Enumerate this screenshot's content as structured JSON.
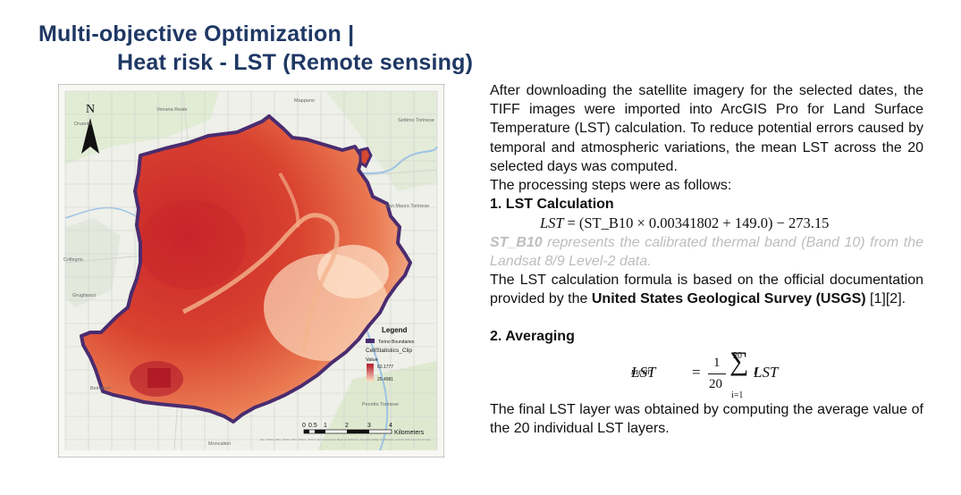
{
  "title": {
    "line1": "Multi-objective Optimization |",
    "line2": "Heat risk - LST (Remote sensing)"
  },
  "map": {
    "north": "N",
    "legend_title": "Legend",
    "legend_boundary": "Torino Boundaries",
    "legend_raster": "CellStatistics_Clip",
    "legend_value": "Value",
    "legend_high": "63.1777",
    "legend_low": "25.4981",
    "scale_ticks": [
      "0",
      "0.5",
      "1",
      "2",
      "3",
      "4"
    ],
    "scale_unit": "Kilometers",
    "places": {
      "mappano": "Mappano",
      "settimo": "Settimo Torinese",
      "venaria": "Venaria Reale",
      "druento": "Druento",
      "san_mauro": "San Mauro Torinese",
      "collegno": "Collegno",
      "grugliasco": "Grugliasco",
      "beinasco": "Beinasco",
      "moncalieri": "Moncalieri",
      "pecetto": "Pecetto Torinese"
    },
    "attribution": "Esri, NASA, NGA, USGS, FAO, NOAA, USGS | Esri Community Maps Contributors, OpenStreetMap contributors, and the GIS User Community",
    "colors": {
      "boundary": "#4a2c6f",
      "high": "#b2182b",
      "low": "#fde0c5"
    }
  },
  "text": {
    "intro": "After downloading the satellite imagery for the selected dates, the TIFF images were imported into ArcGIS Pro for Land Surface Temperature (LST) calculation. To reduce potential errors caused by temporal and atmospheric variations, the mean LST across the 20 selected days was computed.",
    "steps_intro": "The processing steps were as follows:",
    "step1_heading": "1. LST Calculation",
    "formula1_lhs": "LST",
    "formula1_rhs": "= (ST_B10 × 0.00341802 + 149.0) − 273.15",
    "note_bold": "ST_B10",
    "note_rest": " represents the calibrated thermal band (Band 10) from the Landsat 8/9 Level-2 data.",
    "usgs_pre": "The LST calculation formula is based on the official documentation provided by the ",
    "usgs_bold": "United States Geological Survey (USGS)",
    "usgs_post": " [1][2].",
    "step2_heading": "2. Averaging",
    "formula2": {
      "lhs": "LST",
      "lhs_sub": "mean",
      "eq": "=",
      "num": "1",
      "den": "20",
      "upper": "20",
      "lower": "i=1",
      "rhs": "LST",
      "rhs_sub": "I"
    },
    "final": "The final LST layer was obtained by computing the average value of the 20 individual LST layers."
  }
}
